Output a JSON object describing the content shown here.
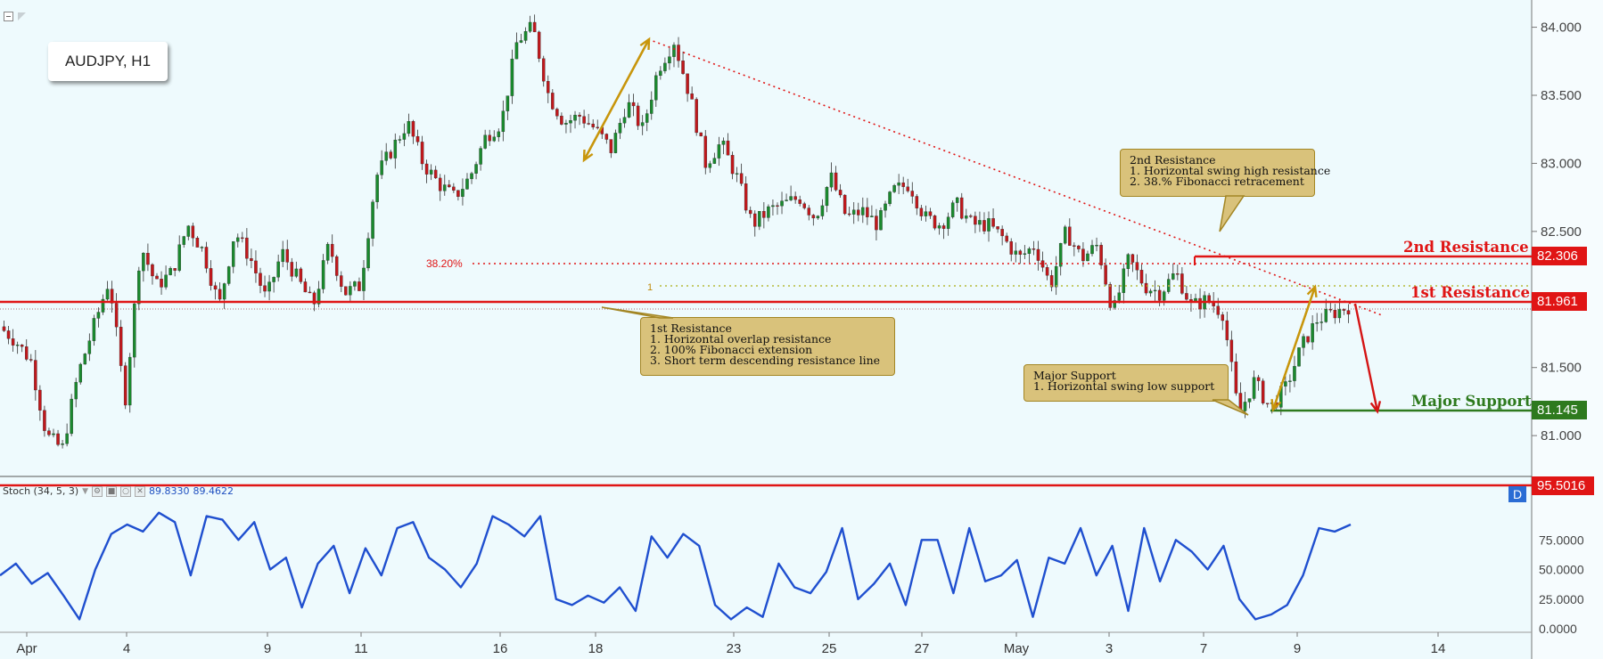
{
  "symbol_label": "AUDJPY, H1",
  "stoch_legend": {
    "name": "Stoch (34, 5, 3)",
    "value1": "89.8330",
    "value2": "89.4622",
    "badge": "D"
  },
  "notes": {
    "second_resistance": [
      "2nd Resistance",
      "1. Horizontal swing high resistance",
      "2. 38.% Fibonacci retracement"
    ],
    "first_resistance": [
      "1st Resistance",
      "1. Horizontal overlap resistance",
      "2. 100% Fibonacci extension",
      "3. Short term descending resistance line"
    ],
    "major_support": [
      "Major Support",
      "1. Horizontal swing low support"
    ]
  },
  "levels": {
    "second_resistance": {
      "label": "2nd Resistance",
      "price": "82.306",
      "color": "#e01515"
    },
    "first_resistance": {
      "label": "1st Resistance",
      "price": "81.961",
      "color": "#e01515"
    },
    "major_support": {
      "label": "Major Support",
      "price": "81.145",
      "color": "#2e7a1e"
    },
    "stoch_level": {
      "price": "95.5016",
      "color": "#e01515"
    }
  },
  "fib_labels": {
    "fib_382": "38.20%",
    "fib_ext": "1"
  },
  "colors": {
    "background": "#eefafd",
    "up_candle": "#1a8a2e",
    "down_candle": "#c0181c",
    "stoch_line": "#1f4fcf",
    "arrow_gold": "#c8960c"
  },
  "chart_data": {
    "type": "candlestick",
    "title": "AUDJPY, H1",
    "price_axis": {
      "min": 80.7,
      "max": 84.2,
      "ticks": [
        "84.000",
        "83.500",
        "83.000",
        "82.500",
        "82.000",
        "81.500",
        "81.000"
      ],
      "tick_values": [
        84.0,
        83.5,
        83.0,
        82.5,
        82.0,
        81.5,
        81.0
      ]
    },
    "stoch_axis": {
      "ticks": [
        "75.0000",
        "50.0000",
        "25.0000",
        "0.0000"
      ],
      "tick_values": [
        75,
        50,
        25,
        0
      ]
    },
    "time_axis": {
      "ticks": [
        "Apr",
        "4",
        "9",
        "11",
        "16",
        "18",
        "23",
        "25",
        "27",
        "May",
        "3",
        "7",
        "9",
        "14"
      ]
    },
    "price_path": [
      81.8,
      81.7,
      81.55,
      81.0,
      80.9,
      81.45,
      81.8,
      82.15,
      81.25,
      82.4,
      82.1,
      82.2,
      82.55,
      82.35,
      81.95,
      82.5,
      82.3,
      82.0,
      82.35,
      82.15,
      81.95,
      82.4,
      82.05,
      82.1,
      82.9,
      83.1,
      83.3,
      83.0,
      82.85,
      82.75,
      82.9,
      83.2,
      83.3,
      83.9,
      84.0,
      83.5,
      83.3,
      83.35,
      83.25,
      83.1,
      83.45,
      83.25,
      83.7,
      83.9,
      83.5,
      83.0,
      83.15,
      82.9,
      82.55,
      82.65,
      82.7,
      82.75,
      82.6,
      82.9,
      82.6,
      82.65,
      82.55,
      82.8,
      82.85,
      82.6,
      82.55,
      82.7,
      82.55,
      82.55,
      82.45,
      82.3,
      82.4,
      82.1,
      82.5,
      82.3,
      82.4,
      81.9,
      82.3,
      82.1,
      82.05,
      82.2,
      81.95,
      82.0,
      81.9,
      81.15,
      81.4,
      81.2,
      81.35,
      81.65,
      81.85,
      81.9,
      81.95
    ],
    "stoch_path": [
      45,
      55,
      38,
      47,
      28,
      8,
      50,
      80,
      88,
      82,
      98,
      90,
      45,
      95,
      92,
      75,
      90,
      50,
      60,
      18,
      55,
      70,
      30,
      68,
      45,
      85,
      90,
      60,
      50,
      35,
      55,
      95,
      88,
      78,
      95,
      25,
      20,
      28,
      22,
      35,
      15,
      78,
      60,
      80,
      70,
      20,
      8,
      18,
      10,
      55,
      35,
      30,
      48,
      85,
      25,
      38,
      55,
      20,
      75,
      75,
      30,
      85,
      40,
      45,
      58,
      10,
      60,
      55,
      85,
      45,
      70,
      15,
      85,
      40,
      75,
      65,
      50,
      70,
      25,
      8,
      12,
      20,
      45,
      85,
      82,
      88
    ]
  }
}
